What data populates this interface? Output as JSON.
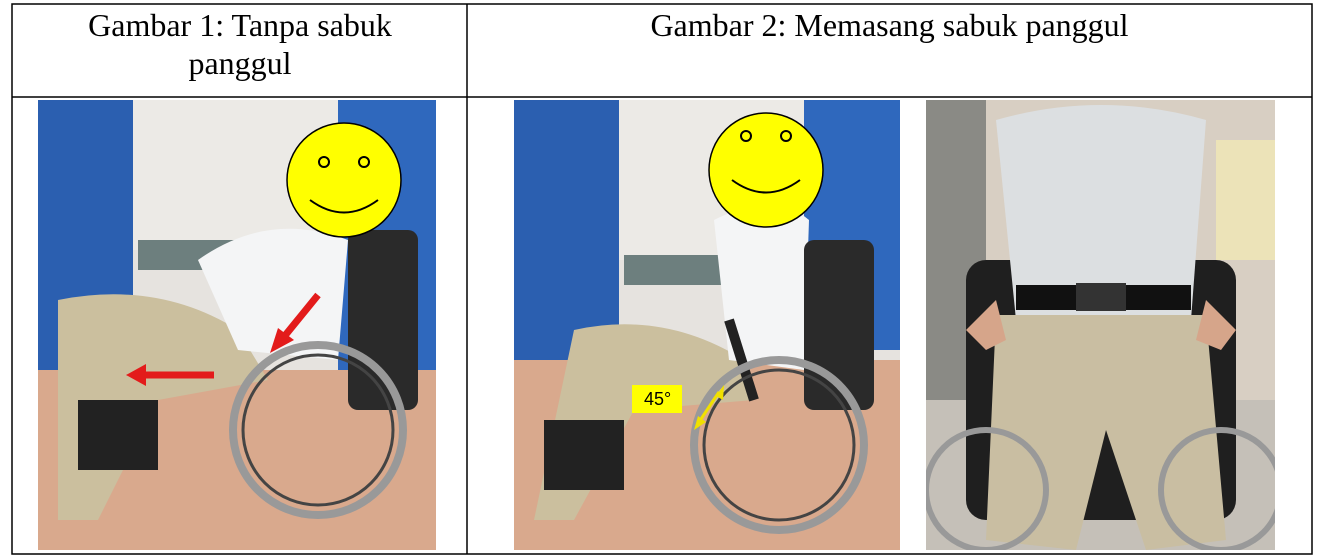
{
  "table": {
    "header": [
      "Gambar 1: Tanpa sabuk panggul",
      "Gambar 2: Memasang sabuk panggul"
    ]
  },
  "annotations": {
    "angle": "45°"
  }
}
